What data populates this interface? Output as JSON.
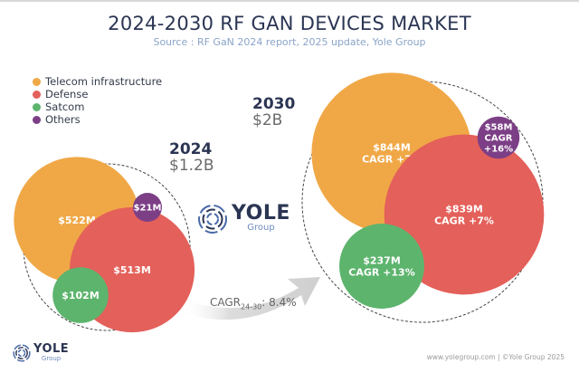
{
  "header": {
    "title": "2024-2030 RF GAN DEVICES MARKET",
    "subtitle": "Source : RF GaN 2024 report, 2025 update, Yole Group"
  },
  "chart_data": {
    "type": "bubble",
    "title": "2024-2030 RF GAN DEVICES MARKET",
    "subtitle": "Source : RF GaN 2024 report, 2025 update, Yole Group",
    "legend": [
      {
        "name": "Telecom infrastructure",
        "color": "#f0a847"
      },
      {
        "name": "Defense",
        "color": "#e4605a"
      },
      {
        "name": "Satcom",
        "color": "#5db46d"
      },
      {
        "name": "Others",
        "color": "#7c3f86"
      }
    ],
    "legend_position": "top-left",
    "groups": [
      {
        "year": "2024",
        "total_label": "$1.2B",
        "series": [
          {
            "name": "Telecom infrastructure",
            "value_musd": 522,
            "label": "$522M"
          },
          {
            "name": "Defense",
            "value_musd": 513,
            "label": "$513M"
          },
          {
            "name": "Satcom",
            "value_musd": 102,
            "label": "$102M"
          },
          {
            "name": "Others",
            "value_musd": 21,
            "label": "$21M"
          }
        ]
      },
      {
        "year": "2030",
        "total_label": "$2B",
        "series": [
          {
            "name": "Telecom infrastructure",
            "value_musd": 844,
            "label": "$844M",
            "cagr": "CAGR +7%"
          },
          {
            "name": "Defense",
            "value_musd": 839,
            "label": "$839M",
            "cagr": "CAGR +7%"
          },
          {
            "name": "Satcom",
            "value_musd": 237,
            "label": "$237M",
            "cagr": "CAGR +13%"
          },
          {
            "name": "Others",
            "value_musd": 58,
            "label": "$58M",
            "cagr": "CAGR +16%"
          }
        ]
      }
    ],
    "overall_cagr": {
      "label": "CAGR",
      "subscript": "24-30",
      "value": ": 8.4%"
    }
  },
  "labels": {
    "y2024": "2024",
    "t2024": "$1.2B",
    "y2030": "2030",
    "t2030": "$2B",
    "cagr_main": "CAGR",
    "cagr_sub": "24-30",
    "cagr_value": ": 8.4%"
  },
  "logo": {
    "word": "YOLE",
    "sub": "Group"
  },
  "footer": "www.yolegroup.com | ©Yole Group 2025",
  "colors": {
    "title": "#2b3553",
    "subtitle": "#8aa4c8"
  }
}
